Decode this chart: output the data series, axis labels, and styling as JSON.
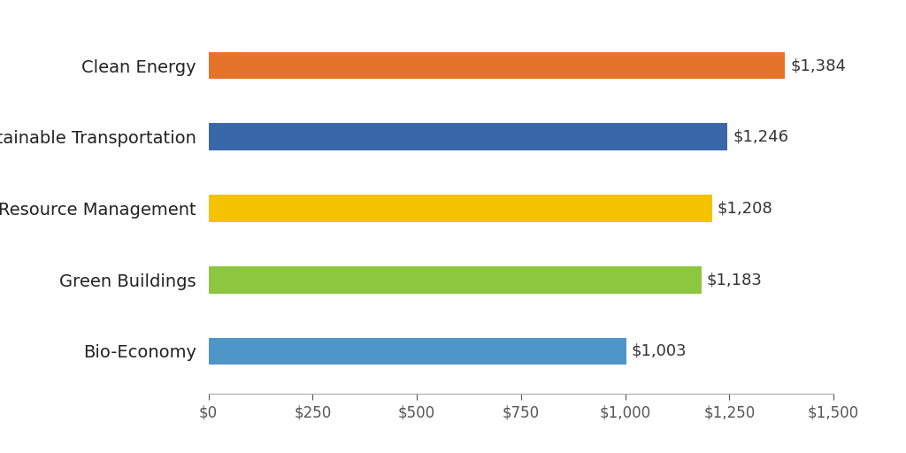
{
  "categories": [
    "Bio-Economy",
    "Green Buildings",
    "Resource Management",
    "Sustainable Transportation",
    "Clean Energy"
  ],
  "values": [
    1003,
    1183,
    1208,
    1246,
    1384
  ],
  "bar_colors": [
    "#4f96c8",
    "#8dc63f",
    "#f5c200",
    "#3a67a8",
    "#e5732a"
  ],
  "labels": [
    "$1,003",
    "$1,183",
    "$1,208",
    "$1,246",
    "$1,384"
  ],
  "xlim": [
    0,
    1500
  ],
  "xticks": [
    0,
    250,
    500,
    750,
    1000,
    1250,
    1500
  ],
  "xtick_labels": [
    "$0",
    "$250",
    "$500",
    "$750",
    "$1,000",
    "$1,250",
    "$1,500"
  ],
  "background_color": "#ffffff",
  "label_fontsize": 13,
  "tick_fontsize": 12,
  "category_fontsize": 14,
  "bar_height": 0.38
}
